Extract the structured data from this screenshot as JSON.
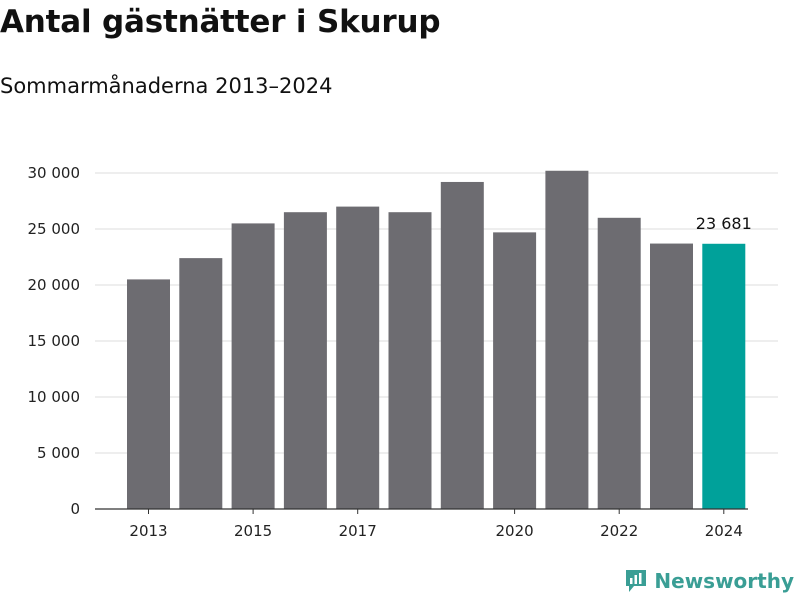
{
  "chart_data": {
    "type": "bar",
    "title": "Antal gästnätter i Skurup",
    "subtitle": "Sommarmånaderna 2013–2024",
    "categories": [
      "2013",
      "2014",
      "2015",
      "2016",
      "2017",
      "2018",
      "2019",
      "2020",
      "2021",
      "2022",
      "2023",
      "2024"
    ],
    "values": [
      20500,
      22400,
      25500,
      26500,
      27000,
      26500,
      29200,
      24700,
      30200,
      26000,
      23700,
      23681
    ],
    "x_tick_labels": [
      "2013",
      "2015",
      "2017",
      "2020",
      "2022",
      "2024"
    ],
    "y_ticks": [
      0,
      5000,
      10000,
      15000,
      20000,
      25000,
      30000
    ],
    "y_tick_labels": [
      "0",
      "5 000",
      "10 000",
      "15 000",
      "20 000",
      "25 000",
      "30 000"
    ],
    "ylim": [
      0,
      30000
    ],
    "xlabel": "",
    "ylabel": "",
    "grid": true,
    "colors": {
      "bar": "#6d6c71",
      "highlight": "#00a19a",
      "grid": "#dddddd",
      "axis": "#333333"
    },
    "highlight_index": 11,
    "value_labels": [
      {
        "index": 11,
        "text": "23 681"
      }
    ]
  },
  "branding": {
    "name": "Newsworthy",
    "icon": "newsworthy-chart-icon",
    "color": "#3a9e95"
  }
}
